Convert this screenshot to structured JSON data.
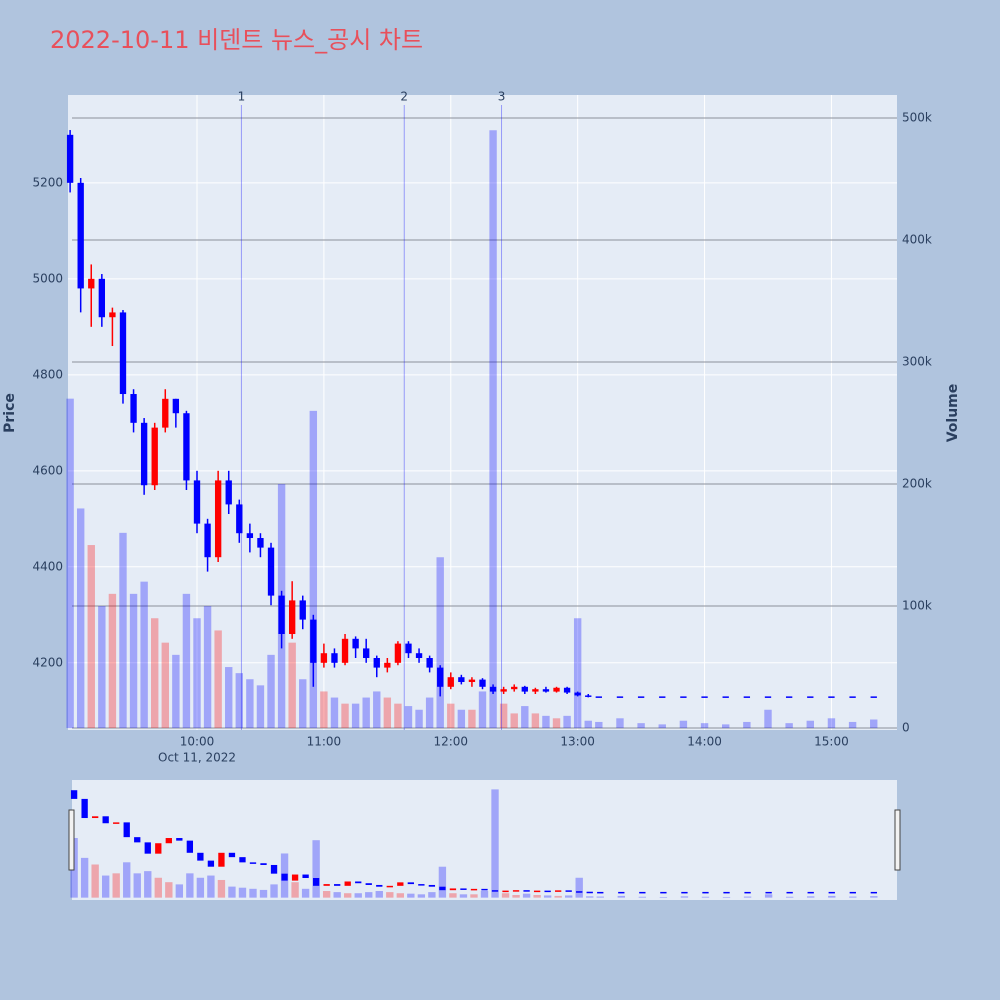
{
  "chart_data": {
    "type": "candlestick",
    "title": "2022-10-11 비덴트 뉴스_공시 차트",
    "title_color": "#e8505b",
    "x_date_label": "Oct 11, 2022",
    "y_label": "Price",
    "y2_label": "Volume",
    "x": [
      "2022-10-11 09:00",
      "2022-10-11 09:05",
      "2022-10-11 09:10",
      "2022-10-11 09:15",
      "2022-10-11 09:20",
      "2022-10-11 09:25",
      "2022-10-11 09:30",
      "2022-10-11 09:35",
      "2022-10-11 09:40",
      "2022-10-11 09:45",
      "2022-10-11 09:50",
      "2022-10-11 09:55",
      "2022-10-11 10:00",
      "2022-10-11 10:05",
      "2022-10-11 10:10",
      "2022-10-11 10:15",
      "2022-10-11 10:20",
      "2022-10-11 10:25",
      "2022-10-11 10:30",
      "2022-10-11 10:35",
      "2022-10-11 10:40",
      "2022-10-11 10:45",
      "2022-10-11 10:50",
      "2022-10-11 10:55",
      "2022-10-11 11:00",
      "2022-10-11 11:05",
      "2022-10-11 11:10",
      "2022-10-11 11:15",
      "2022-10-11 11:20",
      "2022-10-11 11:25",
      "2022-10-11 11:30",
      "2022-10-11 11:35",
      "2022-10-11 11:40",
      "2022-10-11 11:45",
      "2022-10-11 11:50",
      "2022-10-11 11:55",
      "2022-10-11 12:00",
      "2022-10-11 12:05",
      "2022-10-11 12:10",
      "2022-10-11 12:15",
      "2022-10-11 12:20",
      "2022-10-11 12:25",
      "2022-10-11 12:30",
      "2022-10-11 12:35",
      "2022-10-11 12:40",
      "2022-10-11 12:45",
      "2022-10-11 12:50",
      "2022-10-11 12:55",
      "2022-10-11 13:00",
      "2022-10-11 13:05",
      "2022-10-11 13:10",
      "2022-10-11 13:20",
      "2022-10-11 13:30",
      "2022-10-11 13:40",
      "2022-10-11 13:50",
      "2022-10-11 14:00",
      "2022-10-11 14:10",
      "2022-10-11 14:20",
      "2022-10-11 14:30",
      "2022-10-11 14:40",
      "2022-10-11 14:50",
      "2022-10-11 15:00",
      "2022-10-11 15:10",
      "2022-10-11 15:20"
    ],
    "open": [
      5300,
      5200,
      4980,
      5000,
      4920,
      4930,
      4760,
      4700,
      4570,
      4690,
      4750,
      4720,
      4580,
      4490,
      4420,
      4580,
      4530,
      4470,
      4460,
      4440,
      4340,
      4260,
      4330,
      4290,
      4200,
      4220,
      4200,
      4250,
      4230,
      4210,
      4190,
      4200,
      4240,
      4220,
      4210,
      4190,
      4150,
      4170,
      4160,
      4165,
      4150,
      4140,
      4145,
      4150,
      4140,
      4145,
      4140,
      4148,
      4138,
      4132,
      4130,
      4130,
      4130,
      4130,
      4130,
      4130,
      4130,
      4130,
      4130,
      4130,
      4130,
      4130,
      4130,
      4130
    ],
    "high": [
      5310,
      5210,
      5030,
      5010,
      4940,
      4935,
      4770,
      4710,
      4700,
      4770,
      4750,
      4725,
      4600,
      4500,
      4600,
      4600,
      4540,
      4490,
      4470,
      4450,
      4350,
      4370,
      4340,
      4300,
      4240,
      4230,
      4260,
      4255,
      4250,
      4215,
      4210,
      4245,
      4245,
      4230,
      4215,
      4195,
      4180,
      4175,
      4170,
      4168,
      4155,
      4150,
      4155,
      4152,
      4148,
      4150,
      4150,
      4150,
      4140,
      4135,
      4130,
      4130,
      4130,
      4130,
      4130,
      4130,
      4130,
      4130,
      4130,
      4130,
      4130,
      4130,
      4130,
      4130
    ],
    "low": [
      5180,
      4930,
      4900,
      4900,
      4860,
      4740,
      4680,
      4550,
      4560,
      4680,
      4690,
      4560,
      4470,
      4390,
      4410,
      4510,
      4450,
      4430,
      4420,
      4320,
      4230,
      4250,
      4270,
      4150,
      4190,
      4190,
      4195,
      4210,
      4200,
      4170,
      4180,
      4195,
      4210,
      4200,
      4180,
      4130,
      4145,
      4155,
      4150,
      4145,
      4135,
      4135,
      4140,
      4135,
      4135,
      4138,
      4138,
      4135,
      4130,
      4128,
      4130,
      4130,
      4130,
      4130,
      4130,
      4130,
      4130,
      4130,
      4130,
      4130,
      4130,
      4130,
      4130,
      4130
    ],
    "close": [
      5200,
      4980,
      5000,
      4920,
      4930,
      4760,
      4700,
      4570,
      4690,
      4750,
      4720,
      4580,
      4490,
      4420,
      4580,
      4530,
      4470,
      4460,
      4440,
      4340,
      4260,
      4330,
      4290,
      4200,
      4220,
      4200,
      4250,
      4230,
      4210,
      4190,
      4200,
      4240,
      4220,
      4210,
      4190,
      4150,
      4170,
      4160,
      4165,
      4150,
      4140,
      4145,
      4150,
      4140,
      4145,
      4140,
      4148,
      4138,
      4132,
      4130,
      4130,
      4130,
      4130,
      4130,
      4130,
      4130,
      4130,
      4130,
      4130,
      4130,
      4130,
      4130,
      4130,
      4130
    ],
    "volume": [
      270000,
      180000,
      150000,
      100000,
      110000,
      160000,
      110000,
      120000,
      90000,
      70000,
      60000,
      110000,
      90000,
      100000,
      80000,
      50000,
      45000,
      40000,
      35000,
      60000,
      200000,
      70000,
      40000,
      260000,
      30000,
      25000,
      20000,
      20000,
      25000,
      30000,
      25000,
      20000,
      18000,
      15000,
      25000,
      140000,
      20000,
      15000,
      15000,
      30000,
      490000,
      20000,
      12000,
      18000,
      12000,
      10000,
      8000,
      10000,
      90000,
      6000,
      5000,
      8000,
      4000,
      3000,
      6000,
      4000,
      3000,
      5000,
      15000,
      4000,
      6000,
      8000,
      5000,
      7000
    ],
    "increasing_color": "#ff0000",
    "decreasing_color": "#0000ff",
    "volume_increasing_color": "rgba(255,0,0,0.3)",
    "volume_decreasing_color": "rgba(0,0,255,0.3)",
    "annotation_color": "rgba(0,0,255,0.35)",
    "annotations": [
      {
        "x": "2022-10-11 10:21",
        "label": "1"
      },
      {
        "x": "2022-10-11 11:38",
        "label": "2"
      },
      {
        "x": "2022-10-11 12:24",
        "label": "3"
      }
    ],
    "xlim": [
      "2022-10-11 08:59",
      "2022-10-11 15:31"
    ],
    "xticks": [
      {
        "value": "2022-10-11 10:00",
        "label": "10:00"
      },
      {
        "value": "2022-10-11 11:00",
        "label": "11:00"
      },
      {
        "value": "2022-10-11 12:00",
        "label": "12:00"
      },
      {
        "value": "2022-10-11 13:00",
        "label": "13:00"
      },
      {
        "value": "2022-10-11 14:00",
        "label": "14:00"
      },
      {
        "value": "2022-10-11 15:00",
        "label": "15:00"
      }
    ],
    "ylim": [
      4060,
      5383
    ],
    "yticks": [
      4200,
      4400,
      4600,
      4800,
      5000,
      5200
    ],
    "y2lim": [
      -1600,
      518900
    ],
    "y2ticks": [
      0,
      {
        "value": 100000,
        "label": "100k"
      },
      {
        "value": 200000,
        "label": "200k"
      },
      {
        "value": 300000,
        "label": "300k"
      },
      {
        "value": 400000,
        "label": "400k"
      },
      {
        "value": 500000,
        "label": "500k"
      }
    ],
    "grid": true,
    "rangeslider": true
  }
}
